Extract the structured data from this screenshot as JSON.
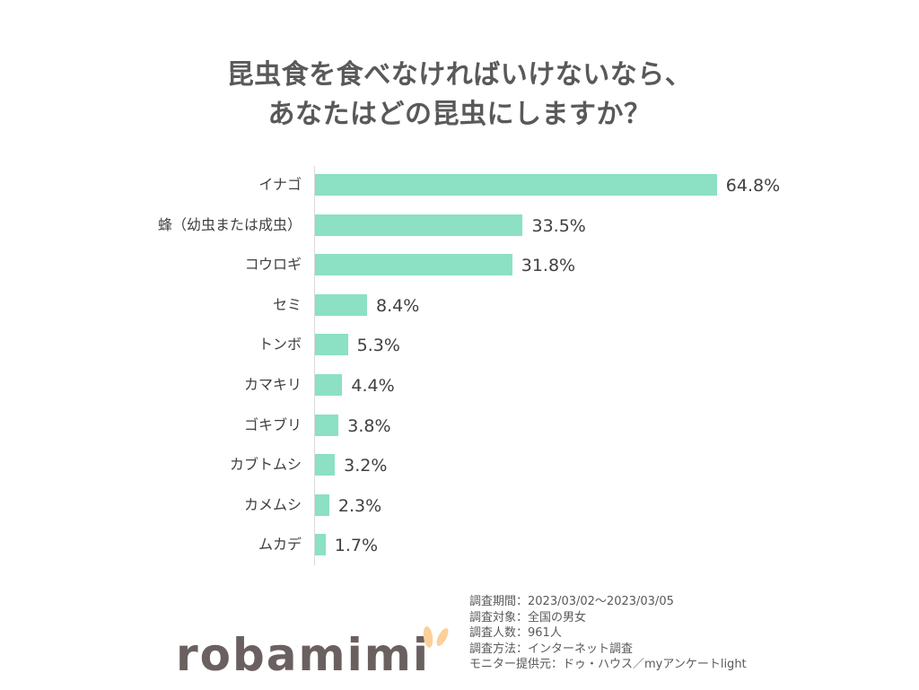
{
  "title": {
    "line1": "昆虫食を食べなければいけないなら、",
    "line2": "あなたはどの昆虫にしますか？"
  },
  "colors": {
    "bar": "#8ce0c4",
    "title": "#595959",
    "text": "#404040",
    "axis": "#d9d9d9",
    "logo_text": "#6b6060",
    "logo_ears": "#fbd09a"
  },
  "chart_data": {
    "type": "bar",
    "orientation": "horizontal",
    "title": "昆虫食を食べなければいけないなら、あなたはどの昆虫にしますか？",
    "xlabel": "",
    "ylabel": "",
    "categories": [
      "イナゴ",
      "蜂（幼虫または成虫）",
      "コウロギ",
      "セミ",
      "トンボ",
      "カマキリ",
      "ゴキブリ",
      "カブトムシ",
      "カメムシ",
      "ムカデ"
    ],
    "values": [
      64.8,
      33.5,
      31.8,
      8.4,
      5.3,
      4.4,
      3.8,
      3.2,
      2.3,
      1.7
    ],
    "value_labels": [
      "64.8%",
      "33.5%",
      "31.8%",
      "8.4%",
      "5.3%",
      "4.4%",
      "3.8%",
      "3.2%",
      "2.3%",
      "1.7%"
    ],
    "unit": "%",
    "grid": false,
    "legend": "none"
  },
  "footer": {
    "notes": [
      "調査期間：2023/03/02～2023/03/05",
      "調査対象：全国の男女",
      "調査人数：961人",
      "調査方法：インターネット調査",
      "モニター提供元：ドゥ・ハウス／myアンケートlight"
    ]
  },
  "logo": {
    "text": "robamimi"
  }
}
